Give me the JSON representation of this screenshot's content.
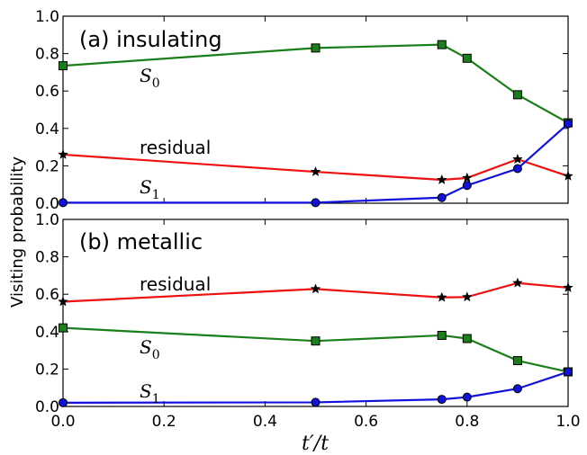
{
  "figure": {
    "ylabel": "Visiting probability",
    "xlabel": "t′/t"
  },
  "colors": {
    "S0": "#1a7f1a",
    "residual": "#ee1111",
    "S1": "#1111dd"
  },
  "chart_data": [
    {
      "type": "line",
      "panel_label": "(a) insulating",
      "xlim": [
        0.0,
        1.0
      ],
      "ylim": [
        0.0,
        1.0
      ],
      "x_ticks": [
        "0.0",
        "0.2",
        "0.4",
        "0.6",
        "0.8",
        "1.0"
      ],
      "y_ticks": [
        "0.0",
        "0.2",
        "0.4",
        "0.6",
        "0.8",
        "1.0"
      ],
      "x": [
        0.0,
        0.5,
        0.75,
        0.8,
        0.9,
        1.0
      ],
      "series": [
        {
          "key": "S0",
          "name_main": "S",
          "name_sub": "0",
          "marker": "square",
          "values": [
            0.735,
            0.83,
            0.848,
            0.775,
            0.58,
            0.43
          ]
        },
        {
          "key": "residual",
          "name": "residual",
          "marker": "star",
          "values": [
            0.26,
            0.168,
            0.125,
            0.135,
            0.235,
            0.145
          ]
        },
        {
          "key": "S1",
          "name_main": "S",
          "name_sub": "1",
          "marker": "circle",
          "values": [
            0.003,
            0.003,
            0.03,
            0.095,
            0.185,
            0.425
          ]
        }
      ]
    },
    {
      "type": "line",
      "panel_label": "(b) metallic",
      "xlim": [
        0.0,
        1.0
      ],
      "ylim": [
        0.0,
        1.0
      ],
      "x_ticks": [
        "0.0",
        "0.2",
        "0.4",
        "0.6",
        "0.8",
        "1.0"
      ],
      "y_ticks": [
        "0.0",
        "0.2",
        "0.4",
        "0.6",
        "0.8",
        "1.0"
      ],
      "x": [
        0.0,
        0.5,
        0.75,
        0.8,
        0.9,
        1.0
      ],
      "series": [
        {
          "key": "residual",
          "name": "residual",
          "marker": "star",
          "values": [
            0.56,
            0.628,
            0.583,
            0.585,
            0.66,
            0.635
          ]
        },
        {
          "key": "S0",
          "name_main": "S",
          "name_sub": "0",
          "marker": "square",
          "values": [
            0.42,
            0.35,
            0.38,
            0.363,
            0.245,
            0.185
          ]
        },
        {
          "key": "S1",
          "name_main": "S",
          "name_sub": "1",
          "marker": "circle",
          "values": [
            0.02,
            0.022,
            0.038,
            0.05,
            0.095,
            0.185
          ]
        }
      ]
    }
  ]
}
